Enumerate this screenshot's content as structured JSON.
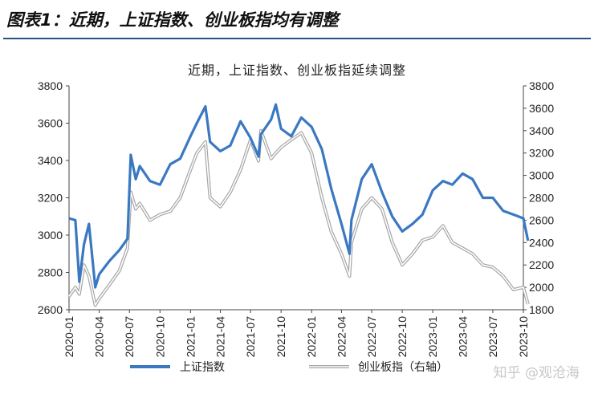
{
  "header": {
    "title": "图表1：近期，上证指数、创业板指均有调整",
    "rule_color": "#2a4f86"
  },
  "watermark": "知乎 @观沧海",
  "chart_data": {
    "type": "line",
    "title": "近期，上证指数、创业板指延续调整",
    "x_tick_labels": [
      "2020-01",
      "2020-04",
      "2020-07",
      "2020-10",
      "2021-01",
      "2021-04",
      "2021-07",
      "2021-10",
      "2022-01",
      "2022-04",
      "2022-07",
      "2022-10",
      "2023-01",
      "2023-04",
      "2023-07",
      "2023-10"
    ],
    "y_left": {
      "lim": [
        2600,
        3800
      ],
      "ticks": [
        2600,
        2800,
        3000,
        3200,
        3400,
        3600,
        3800
      ]
    },
    "y_right": {
      "lim": [
        1800,
        3800
      ],
      "ticks": [
        1800,
        2000,
        2200,
        2400,
        2600,
        2800,
        3000,
        3200,
        3400,
        3600,
        3800
      ]
    },
    "grid": false,
    "legend_position": "bottom",
    "series": [
      {
        "name": "上证指数",
        "axis": "left",
        "color": "#3a78c2",
        "style": "solid",
        "points": [
          [
            "2020-01",
            3090
          ],
          [
            "2020-01-20",
            3080
          ],
          [
            "2020-02",
            2750
          ],
          [
            "2020-02-15",
            2950
          ],
          [
            "2020-03",
            3060
          ],
          [
            "2020-03-20",
            2720
          ],
          [
            "2020-04",
            2790
          ],
          [
            "2020-05",
            2860
          ],
          [
            "2020-06",
            2920
          ],
          [
            "2020-06-25",
            2980
          ],
          [
            "2020-07-05",
            3430
          ],
          [
            "2020-07-20",
            3300
          ],
          [
            "2020-08",
            3370
          ],
          [
            "2020-09",
            3290
          ],
          [
            "2020-10",
            3270
          ],
          [
            "2020-11",
            3380
          ],
          [
            "2020-12",
            3410
          ],
          [
            "2021-01",
            3530
          ],
          [
            "2021-01-20",
            3600
          ],
          [
            "2021-02-15",
            3690
          ],
          [
            "2021-03",
            3500
          ],
          [
            "2021-04",
            3450
          ],
          [
            "2021-05",
            3480
          ],
          [
            "2021-06",
            3610
          ],
          [
            "2021-07",
            3520
          ],
          [
            "2021-07-25",
            3420
          ],
          [
            "2021-08",
            3540
          ],
          [
            "2021-09",
            3620
          ],
          [
            "2021-09-15",
            3700
          ],
          [
            "2021-10",
            3570
          ],
          [
            "2021-11",
            3530
          ],
          [
            "2021-12",
            3630
          ],
          [
            "2022-01",
            3580
          ],
          [
            "2022-02",
            3460
          ],
          [
            "2022-03",
            3250
          ],
          [
            "2022-04",
            3060
          ],
          [
            "2022-04-25",
            2900
          ],
          [
            "2022-05",
            3080
          ],
          [
            "2022-06",
            3300
          ],
          [
            "2022-07",
            3380
          ],
          [
            "2022-08",
            3230
          ],
          [
            "2022-09",
            3100
          ],
          [
            "2022-10",
            3020
          ],
          [
            "2022-11",
            3060
          ],
          [
            "2022-12",
            3110
          ],
          [
            "2023-01",
            3240
          ],
          [
            "2023-02",
            3290
          ],
          [
            "2023-03",
            3270
          ],
          [
            "2023-04",
            3330
          ],
          [
            "2023-05",
            3300
          ],
          [
            "2023-06",
            3200
          ],
          [
            "2023-07",
            3200
          ],
          [
            "2023-08",
            3130
          ],
          [
            "2023-09",
            3110
          ],
          [
            "2023-10",
            3090
          ],
          [
            "2023-10-15",
            2970
          ]
        ]
      },
      {
        "name": "创业板指（右轴）",
        "axis": "right",
        "color": "#a6a6a6",
        "style": "double",
        "points": [
          [
            "2020-01",
            1920
          ],
          [
            "2020-01-20",
            2000
          ],
          [
            "2020-02",
            1940
          ],
          [
            "2020-02-15",
            2200
          ],
          [
            "2020-03",
            2100
          ],
          [
            "2020-03-20",
            1840
          ],
          [
            "2020-04",
            1900
          ],
          [
            "2020-05",
            2020
          ],
          [
            "2020-06",
            2150
          ],
          [
            "2020-06-25",
            2350
          ],
          [
            "2020-07-05",
            2850
          ],
          [
            "2020-07-20",
            2700
          ],
          [
            "2020-08",
            2750
          ],
          [
            "2020-09",
            2600
          ],
          [
            "2020-10",
            2650
          ],
          [
            "2020-11",
            2680
          ],
          [
            "2020-12",
            2800
          ],
          [
            "2021-01",
            3050
          ],
          [
            "2021-01-20",
            3200
          ],
          [
            "2021-02-15",
            3300
          ],
          [
            "2021-03",
            2800
          ],
          [
            "2021-04",
            2720
          ],
          [
            "2021-05",
            2850
          ],
          [
            "2021-06",
            3050
          ],
          [
            "2021-07",
            3320
          ],
          [
            "2021-07-25",
            3130
          ],
          [
            "2021-08",
            3400
          ],
          [
            "2021-09",
            3150
          ],
          [
            "2021-09-15",
            3200
          ],
          [
            "2021-10",
            3250
          ],
          [
            "2021-11",
            3320
          ],
          [
            "2021-12",
            3380
          ],
          [
            "2022-01",
            3200
          ],
          [
            "2022-02",
            2800
          ],
          [
            "2022-03",
            2500
          ],
          [
            "2022-04",
            2300
          ],
          [
            "2022-04-25",
            2100
          ],
          [
            "2022-05",
            2400
          ],
          [
            "2022-06",
            2700
          ],
          [
            "2022-07",
            2800
          ],
          [
            "2022-08",
            2700
          ],
          [
            "2022-09",
            2400
          ],
          [
            "2022-10",
            2200
          ],
          [
            "2022-11",
            2300
          ],
          [
            "2022-12",
            2420
          ],
          [
            "2023-01",
            2450
          ],
          [
            "2023-02",
            2550
          ],
          [
            "2023-03",
            2400
          ],
          [
            "2023-04",
            2350
          ],
          [
            "2023-05",
            2300
          ],
          [
            "2023-06",
            2200
          ],
          [
            "2023-07",
            2180
          ],
          [
            "2023-08",
            2100
          ],
          [
            "2023-09",
            1980
          ],
          [
            "2023-10",
            2000
          ],
          [
            "2023-10-15",
            1850
          ]
        ]
      }
    ]
  }
}
